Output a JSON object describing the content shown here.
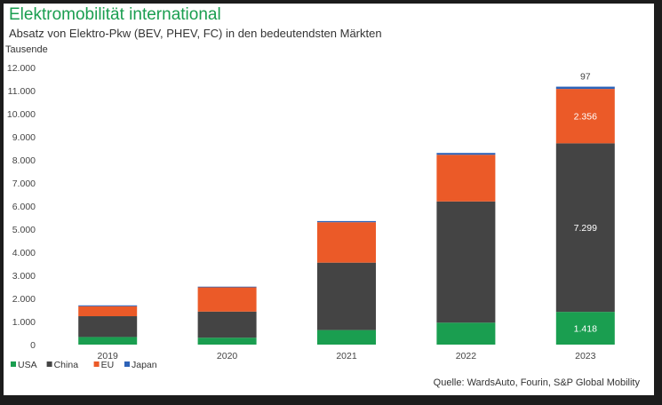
{
  "title": "Elektromobilität international",
  "subtitle": "Absatz von Elektro-Pkw (BEV, PHEV, FC) in den bedeutendsten Märkten",
  "source": "Quelle: WardsAuto, Fourin, S&P Global Mobility",
  "colors": {
    "USA": "#1a9e50",
    "China": "#444444",
    "EU": "#eb5a28",
    "Japan": "#2e63b8",
    "title": "#1a9e50"
  },
  "chart_data": {
    "type": "bar",
    "stacked": true,
    "ylabel": "Tausende",
    "ylim": [
      0,
      12000
    ],
    "yticks": [
      0,
      1000,
      2000,
      3000,
      4000,
      5000,
      6000,
      7000,
      8000,
      9000,
      10000,
      11000,
      12000
    ],
    "ytick_labels": [
      "0",
      "1.000",
      "2.000",
      "3.000",
      "4.000",
      "5.000",
      "6.000",
      "7.000",
      "8.000",
      "9.000",
      "10.000",
      "11.000",
      "12.000"
    ],
    "categories": [
      "2019",
      "2020",
      "2021",
      "2022",
      "2023"
    ],
    "series": [
      {
        "name": "USA",
        "color": "#1a9e50",
        "values": [
          330,
          300,
          630,
          950,
          1418
        ]
      },
      {
        "name": "China",
        "color": "#444444",
        "values": [
          900,
          1130,
          2920,
          5250,
          7299
        ]
      },
      {
        "name": "EU",
        "color": "#eb5a28",
        "values": [
          430,
          1050,
          1750,
          2020,
          2356
        ]
      },
      {
        "name": "Japan",
        "color": "#2e63b8",
        "values": [
          40,
          30,
          50,
          80,
          97
        ]
      }
    ],
    "data_labels": [
      {
        "series": "USA",
        "category": "2023",
        "text": "1.418"
      },
      {
        "series": "China",
        "category": "2023",
        "text": "7.299"
      },
      {
        "series": "EU",
        "category": "2023",
        "text": "2.356"
      },
      {
        "series": "Japan",
        "category": "2023",
        "text": "97"
      }
    ],
    "legend_position": "bottom-left",
    "grid": false
  }
}
